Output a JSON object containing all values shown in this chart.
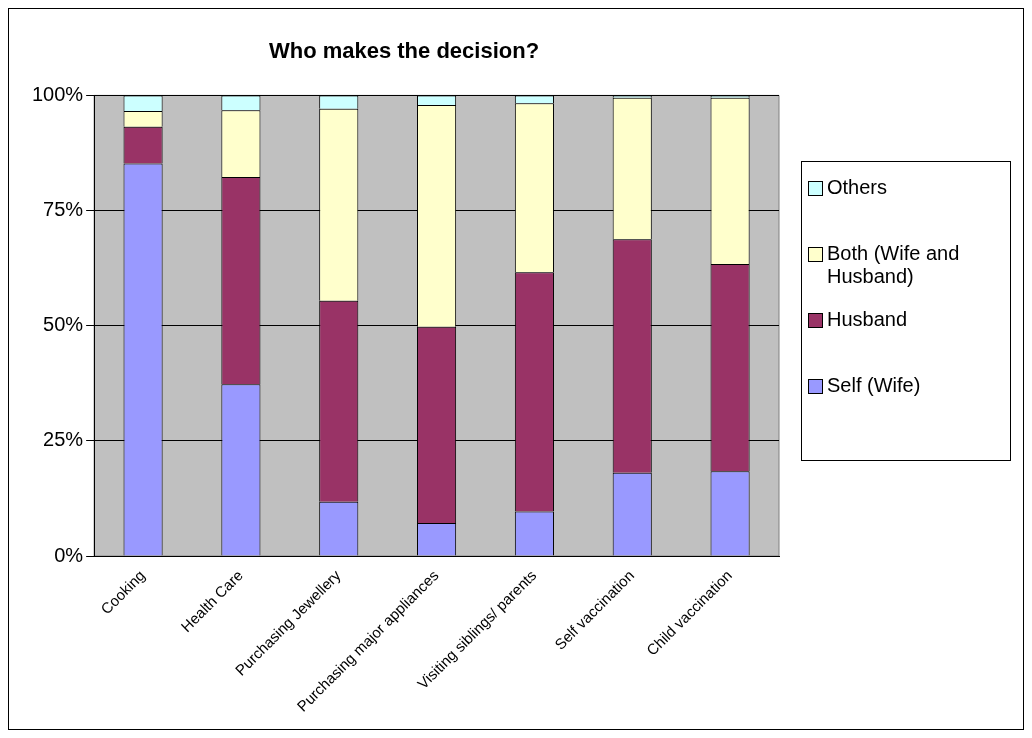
{
  "chart_data": {
    "type": "bar",
    "title": "Who makes the decision?",
    "stacked": true,
    "categories": [
      "Cooking",
      "Health Care",
      "Purchasing Jewellery",
      "Purchasing major appliances",
      "Visiting siblings/ parents",
      "Self vaccination",
      "Child vaccination"
    ],
    "series": [
      {
        "name": "Self (Wife)",
        "color": "#9999ff",
        "values": [
          85.2,
          37.3,
          11.8,
          7.2,
          9.7,
          18.1,
          18.4
        ]
      },
      {
        "name": "Husband",
        "color": "#993366",
        "values": [
          8,
          45,
          43.6,
          42.6,
          51.9,
          50.7,
          45
        ]
      },
      {
        "name": "Both (Wife and Husband)",
        "color": "#ffffcc",
        "values": [
          3.4,
          14.5,
          41.7,
          48.1,
          36.7,
          30.7,
          36.1
        ]
      },
      {
        "name": "Others",
        "color": "#ccffff",
        "values": [
          3.4,
          3.2,
          2.9,
          2.1,
          1.7,
          0.5,
          0.5
        ]
      }
    ],
    "ylim": [
      0,
      100
    ],
    "yticks": [
      {
        "value": 0,
        "label": "0%"
      },
      {
        "value": 25,
        "label": "25%"
      },
      {
        "value": 50,
        "label": "50%"
      },
      {
        "value": 75,
        "label": "75%"
      },
      {
        "value": 100,
        "label": "100%"
      }
    ],
    "grid": "y",
    "legend": "right"
  }
}
